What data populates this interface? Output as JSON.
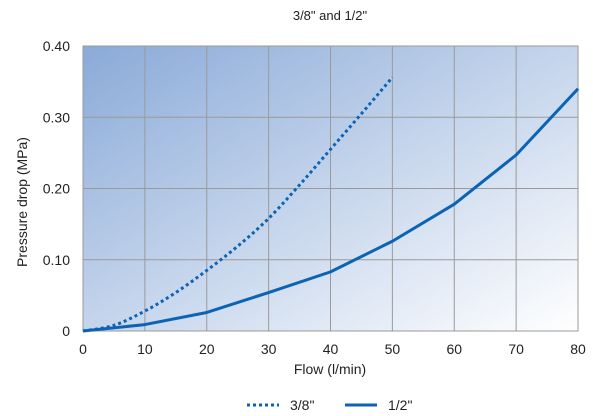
{
  "chart_data": {
    "type": "line",
    "title": "3/8\" and 1/2\"",
    "xlabel": "Flow (l/min)",
    "ylabel": "Pressure drop (MPa)",
    "xlim": [
      0,
      80
    ],
    "ylim": [
      0,
      0.4
    ],
    "x_ticks": [
      0,
      10,
      20,
      30,
      40,
      50,
      60,
      70,
      80
    ],
    "x_tick_labels": [
      "0",
      "10",
      "20",
      "30",
      "40",
      "50",
      "60",
      "70",
      "80"
    ],
    "y_ticks": [
      0,
      0.1,
      0.2,
      0.3,
      0.4
    ],
    "y_tick_labels": [
      "0",
      "0.10",
      "0.20",
      "0.30",
      "0.40"
    ],
    "grid": true,
    "legend_position": "bottom-center",
    "background": {
      "gradient_from": "#8aaad8",
      "gradient_to": "#ffffff"
    },
    "series": [
      {
        "name": "3/8\"",
        "style": "dotted",
        "color": "#0b63b5",
        "x": [
          0,
          5,
          10,
          15,
          20,
          25,
          30,
          35,
          40,
          45,
          50
        ],
        "y": [
          0,
          0.008,
          0.028,
          0.054,
          0.085,
          0.119,
          0.158,
          0.205,
          0.255,
          0.305,
          0.356
        ]
      },
      {
        "name": "1/2\"",
        "style": "solid",
        "color": "#0b63b5",
        "x": [
          0,
          10,
          20,
          30,
          40,
          50,
          60,
          70,
          80
        ],
        "y": [
          0,
          0.009,
          0.026,
          0.054,
          0.083,
          0.126,
          0.178,
          0.247,
          0.34
        ]
      }
    ]
  }
}
